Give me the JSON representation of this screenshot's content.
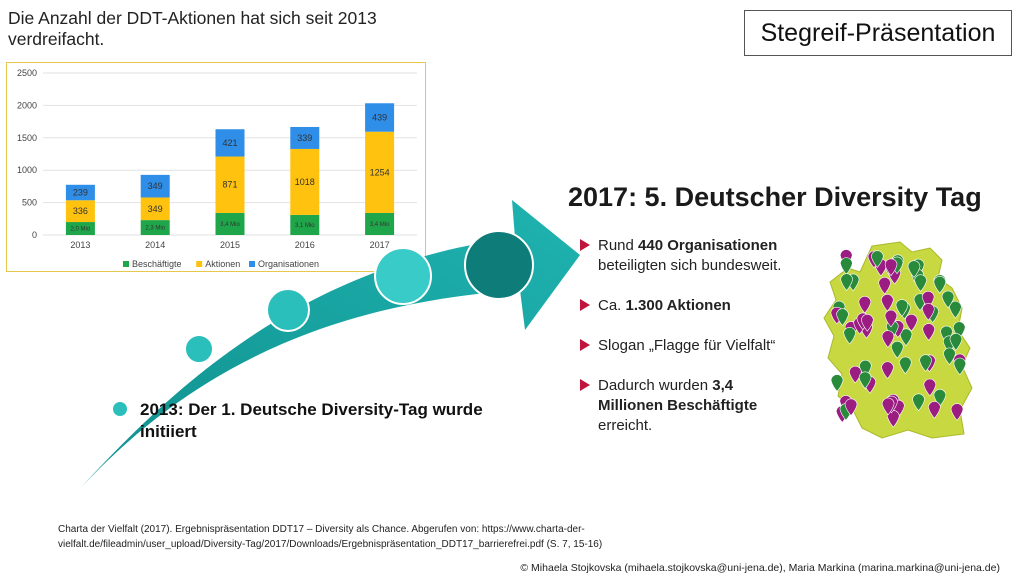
{
  "slide": {
    "heading": "Die Anzahl der DDT-Aktionen hat sich seit 2013 verdreifacht.",
    "badge": "Stegreif-Präsentation",
    "right_title": "2017: 5. Deutscher Diversity Tag",
    "bullets": [
      {
        "parts": [
          {
            "t": "Rund ",
            "b": false
          },
          {
            "t": "440 Organisationen",
            "b": true
          },
          {
            "t": " beteiligten sich bundesweit.",
            "b": false
          }
        ]
      },
      {
        "parts": [
          {
            "t": "Ca. ",
            "b": false
          },
          {
            "t": "1.300 Aktionen",
            "b": true
          }
        ]
      },
      {
        "parts": [
          {
            "t": "Slogan „Flagge für Vielfalt“",
            "b": false
          }
        ]
      },
      {
        "parts": [
          {
            "t": "Dadurch wurden ",
            "b": false
          },
          {
            "t": "3,4 Millionen Beschäftigte",
            "b": true
          },
          {
            "t": " erreicht.",
            "b": false
          }
        ]
      }
    ],
    "caption_2013": "2013:  Der 1. Deutsche Diversity-Tag wurde initiiert",
    "citation": "Charta der Vielfalt (2017). Ergebnispräsentation DDT17 – Diversity als Chance. Abgerufen von: https://www.charta-der-vielfalt.de/fileadmin/user_upload/Diversity-Tag/2017/Downloads/Ergebnispräsentation_DDT17_barrierefrei.pdf (S. 7, 15-16)",
    "footer": "© Mihaela Stojkovska (mihaela.stojkovska@uni-jena.de), Maria Markina (marina.markina@uni-jena.de)",
    "colors": {
      "accent_teal": "#1aa5a3",
      "bullet_red": "#c0143c",
      "map_green": "#2a8a3c",
      "map_purple": "#9b1d82",
      "map_land": "#c8d840"
    }
  },
  "chart_data": {
    "type": "bar",
    "stacked": true,
    "categories": [
      "2013",
      "2014",
      "2015",
      "2016",
      "2017"
    ],
    "ylim": [
      0,
      2500
    ],
    "yticks": [
      0,
      500,
      1000,
      1500,
      2000,
      2500
    ],
    "grid": true,
    "legend_position": "bottom",
    "series": [
      {
        "name": "Beschäftigte",
        "color": "#1fa64a",
        "values": [
          200,
          230,
          340,
          310,
          340
        ],
        "labels": [
          "2,0 Mio",
          "2,3 Mio",
          "3,4 Mio",
          "3,1 Mio",
          "3,4 Mio"
        ]
      },
      {
        "name": "Aktionen",
        "color": "#ffc20e",
        "values": [
          336,
          349,
          871,
          1018,
          1254
        ],
        "labels": [
          "336",
          "349",
          "871",
          "1018",
          "1254"
        ]
      },
      {
        "name": "Organisationen",
        "color": "#2e8ee8",
        "values": [
          239,
          349,
          421,
          339,
          439
        ],
        "labels": [
          "239",
          "349",
          "421",
          "339",
          "439"
        ]
      }
    ]
  }
}
